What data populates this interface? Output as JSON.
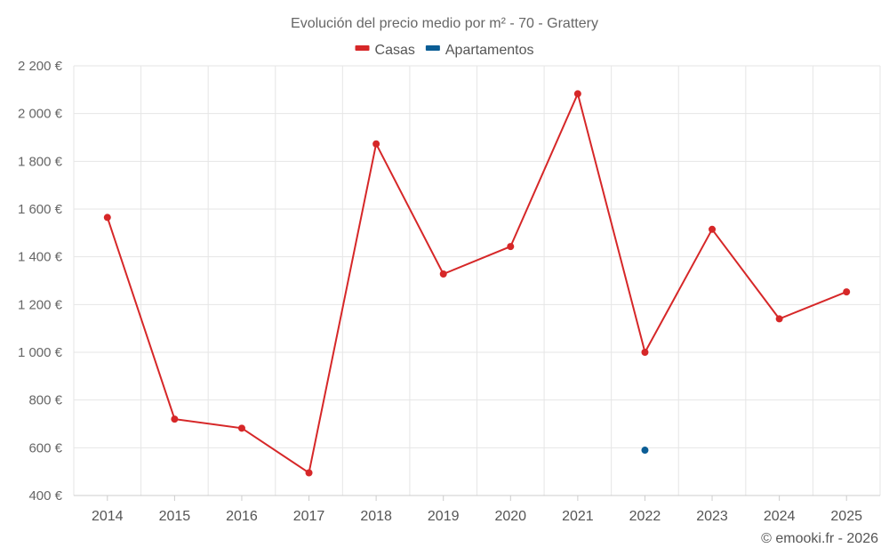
{
  "chart_data": {
    "type": "line",
    "title": "Evolución del precio medio por m² - 70 - Grattery",
    "categories": [
      "2014",
      "2015",
      "2016",
      "2017",
      "2018",
      "2019",
      "2020",
      "2021",
      "2022",
      "2023",
      "2024",
      "2025"
    ],
    "ylim": [
      400,
      2200
    ],
    "yticks": [
      400,
      600,
      800,
      1000,
      1200,
      1400,
      1600,
      1800,
      2000,
      2200
    ],
    "ytick_labels": [
      "400 €",
      "600 €",
      "800 €",
      "1 000 €",
      "1 200 €",
      "1 400 €",
      "1 600 €",
      "1 800 €",
      "2 000 €",
      "2 200 €"
    ],
    "legend_position": "top-center",
    "grid": true,
    "series": [
      {
        "name": "Casas",
        "color": "#d62728",
        "values": [
          1565,
          720,
          682,
          495,
          1873,
          1328,
          1443,
          2083,
          1000,
          1515,
          1140,
          1253
        ]
      },
      {
        "name": "Apartamentos",
        "color": "#0b5d95",
        "values": [
          null,
          null,
          null,
          null,
          null,
          null,
          null,
          null,
          590,
          null,
          null,
          null
        ]
      }
    ],
    "credit": "© emooki.fr - 2026"
  }
}
